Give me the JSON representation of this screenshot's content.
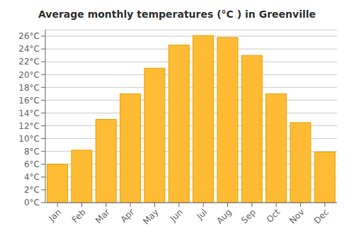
{
  "chart_data": {
    "type": "bar",
    "title": "Average monthly temperatures (°C ) in Greenville",
    "categories": [
      "Jan",
      "Feb",
      "Mar",
      "Apr",
      "May",
      "Jun",
      "Jul",
      "Aug",
      "Sep",
      "Oct",
      "Nov",
      "Dec"
    ],
    "values": [
      6.0,
      8.2,
      13.0,
      17.0,
      21.0,
      24.6,
      26.1,
      25.8,
      23.0,
      17.0,
      12.5,
      7.9
    ],
    "color": "#FFBB33",
    "ylim": [
      0,
      27
    ],
    "yticks": [
      {
        "value": 0,
        "label": "0°C"
      },
      {
        "value": 2,
        "label": "2°C"
      },
      {
        "value": 4,
        "label": "4°C"
      },
      {
        "value": 6,
        "label": "6°C"
      },
      {
        "value": 8,
        "label": "8°C"
      },
      {
        "value": 10,
        "label": "10°C"
      },
      {
        "value": 12,
        "label": "12°C"
      },
      {
        "value": 14,
        "label": "14°C"
      },
      {
        "value": 16,
        "label": "16°C"
      },
      {
        "value": 18,
        "label": "18°C"
      },
      {
        "value": 20,
        "label": "20°C"
      },
      {
        "value": 22,
        "label": "22°C"
      },
      {
        "value": 24,
        "label": "24°C"
      },
      {
        "value": 26,
        "label": "26°C"
      }
    ],
    "grid": true
  }
}
